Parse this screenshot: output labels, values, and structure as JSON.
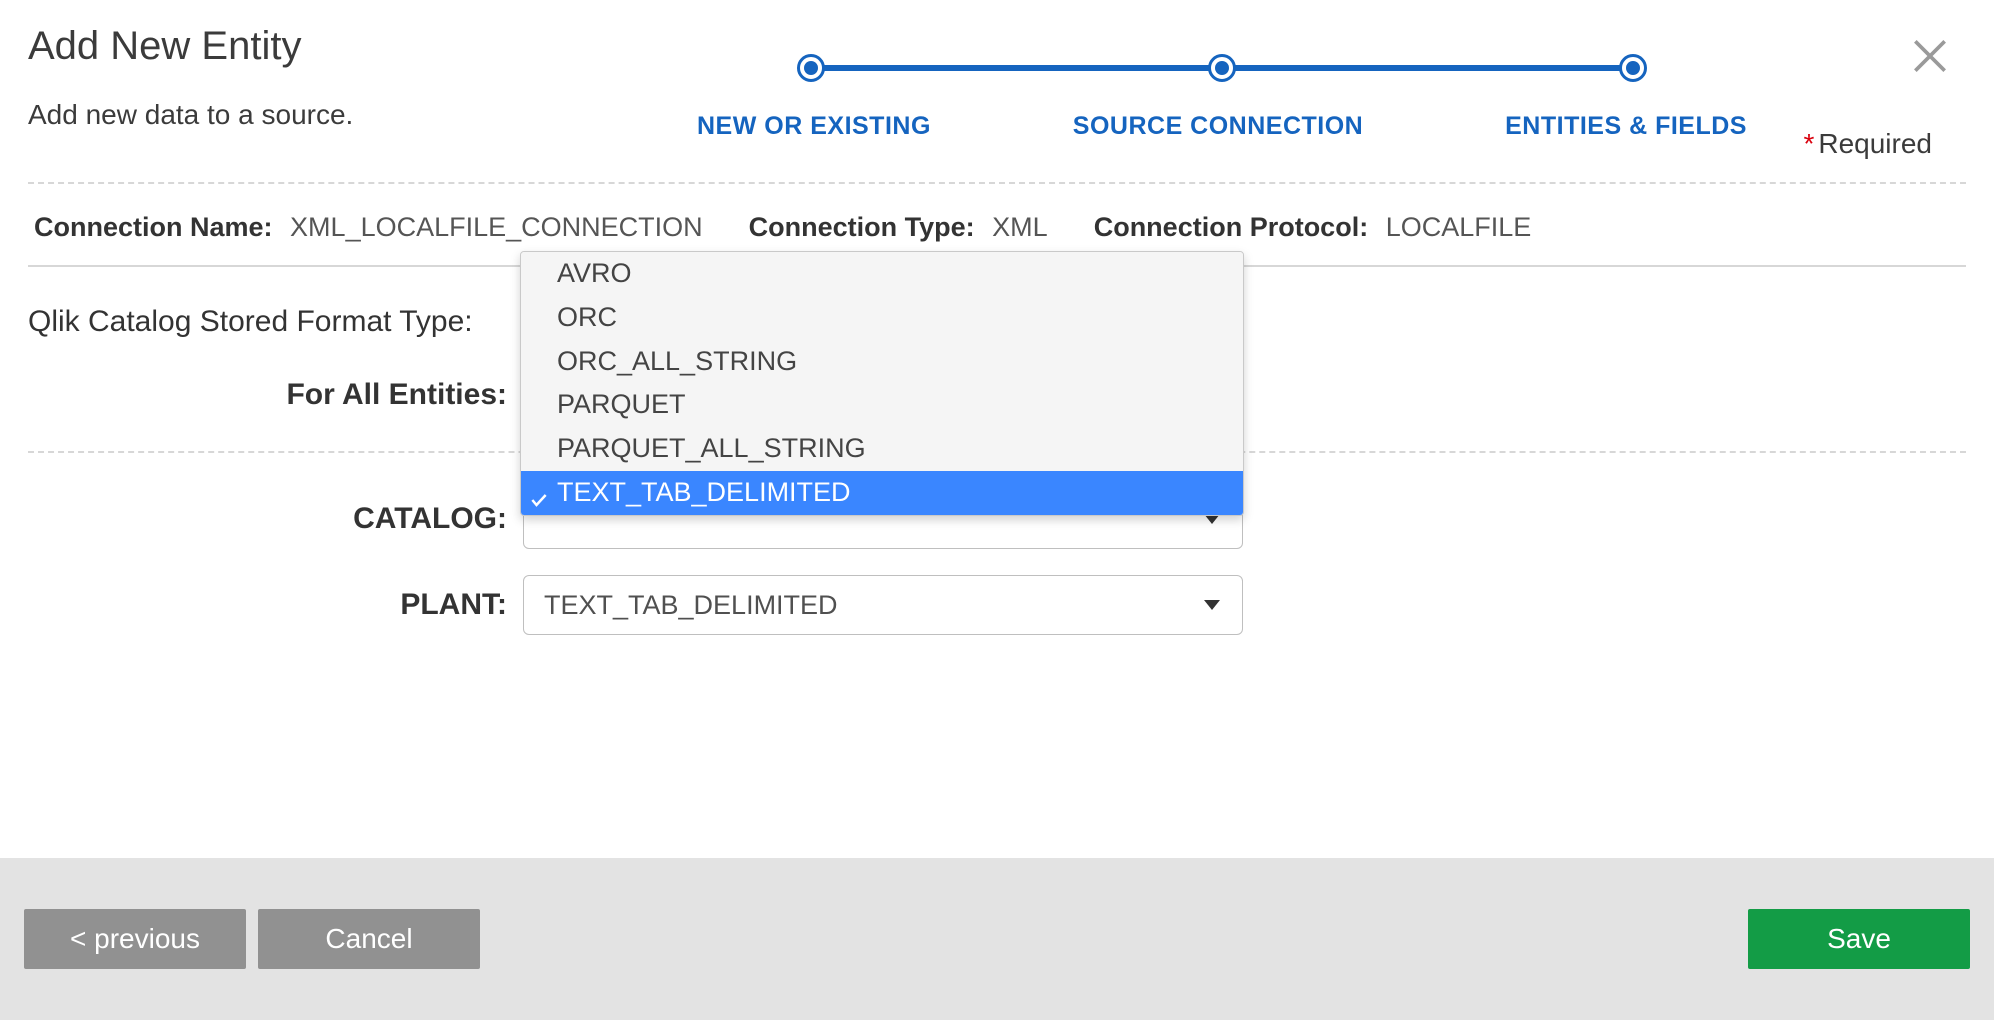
{
  "colors": {
    "primary": "#1564bf",
    "accent_green": "#139c46",
    "button_grey": "#919191",
    "footer_bg": "#e3e3e3",
    "divider": "#d7d7d7",
    "text": "#333333",
    "dropdown_bg": "#f5f5f5",
    "dropdown_selected_bg": "#3a86ff",
    "close_icon": "#9a9a9a",
    "required_asterisk": "#d9000d"
  },
  "header": {
    "title": "Add New Entity",
    "subtitle": "Add new data to a source.",
    "required_label": "Required"
  },
  "wizard": {
    "steps": [
      "NEW OR EXISTING",
      "SOURCE CONNECTION",
      "ENTITIES & FIELDS"
    ]
  },
  "connection": {
    "name_label": "Connection Name:",
    "name_value": "XML_LOCALFILE_CONNECTION",
    "type_label": "Connection Type:",
    "type_value": "XML",
    "protocol_label": "Connection Protocol:",
    "protocol_value": "LOCALFILE"
  },
  "form": {
    "format_label": "Qlik Catalog Stored Format Type:",
    "for_all_label": "For All Entities:",
    "catalog_label": "CATALOG:",
    "plant_label": "PLANT:",
    "plant_value": "TEXT_TAB_DELIMITED"
  },
  "dropdown": {
    "options": [
      "AVRO",
      "ORC",
      "ORC_ALL_STRING",
      "PARQUET",
      "PARQUET_ALL_STRING",
      "TEXT_TAB_DELIMITED"
    ],
    "selected": "TEXT_TAB_DELIMITED"
  },
  "footer": {
    "previous": "< previous",
    "cancel": "Cancel",
    "save": "Save"
  }
}
